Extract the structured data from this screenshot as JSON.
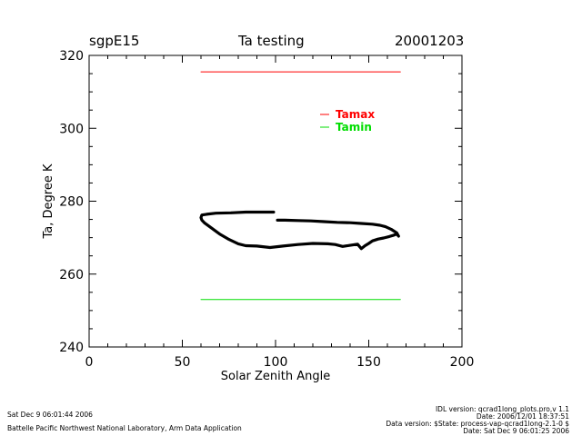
{
  "header": {
    "site": "sgpE15",
    "title": "Ta testing",
    "date": "20001203"
  },
  "footer": {
    "left_line1": "Sat Dec  9 06:01:44 2006",
    "left_line2": "Battelle Pacific Northwest National Laboratory, Arm Data Application",
    "right_line1": "IDL version: qcrad1long_plots.pro,v 1.1",
    "right_line2": "Date: 2006/12/01 18:37:51",
    "right_line3": "Data version: $State: process-vap-qcrad1long-2.1-0 $",
    "right_line4": "Date: Sat Dec  9 06:01:25 2006"
  },
  "colors": {
    "tamax": "#ff0000",
    "tamin": "#00dd00",
    "data": "#000000"
  },
  "chart_data": {
    "type": "line",
    "title": "Ta testing",
    "xlabel": "Solar Zenith Angle",
    "ylabel": "Ta, Degree K",
    "xlim": [
      0,
      200
    ],
    "ylim": [
      240,
      320
    ],
    "xticks": [
      0,
      50,
      100,
      150,
      200
    ],
    "yticks": [
      240,
      260,
      280,
      300,
      320
    ],
    "grid": false,
    "legend": {
      "position": "top-right",
      "entries": [
        "Tamax",
        "Tamin"
      ]
    },
    "series": [
      {
        "name": "Tamax",
        "x": [
          60,
          167
        ],
        "y": [
          315.5,
          315.5
        ]
      },
      {
        "name": "Tamin",
        "x": [
          60,
          167
        ],
        "y": [
          253,
          253
        ]
      },
      {
        "x": [
          99,
          92,
          84,
          76,
          68,
          63,
          60.5,
          60,
          60.5,
          62,
          66,
          70,
          75,
          80,
          84,
          90,
          97,
          104,
          112,
          120,
          128,
          132,
          136,
          140,
          144,
          146,
          148,
          150,
          152,
          155,
          158,
          161,
          163,
          165,
          166,
          165,
          162,
          159,
          156,
          152,
          146,
          140,
          133,
          126,
          119,
          112,
          105,
          101
        ],
        "y": [
          277,
          277,
          277,
          276.8,
          276.7,
          276.4,
          276.2,
          275.5,
          274.8,
          274,
          272.5,
          271,
          269.5,
          268.3,
          267.8,
          267.7,
          267.3,
          267.7,
          268.1,
          268.4,
          268.3,
          268.1,
          267.6,
          267.9,
          268.2,
          267,
          267.8,
          268.4,
          269.1,
          269.6,
          269.9,
          270.3,
          270.6,
          271,
          270.4,
          271.3,
          272.3,
          273,
          273.4,
          273.7,
          273.9,
          274.1,
          274.2,
          274.4,
          274.6,
          274.7,
          274.8,
          274.8
        ]
      }
    ]
  }
}
